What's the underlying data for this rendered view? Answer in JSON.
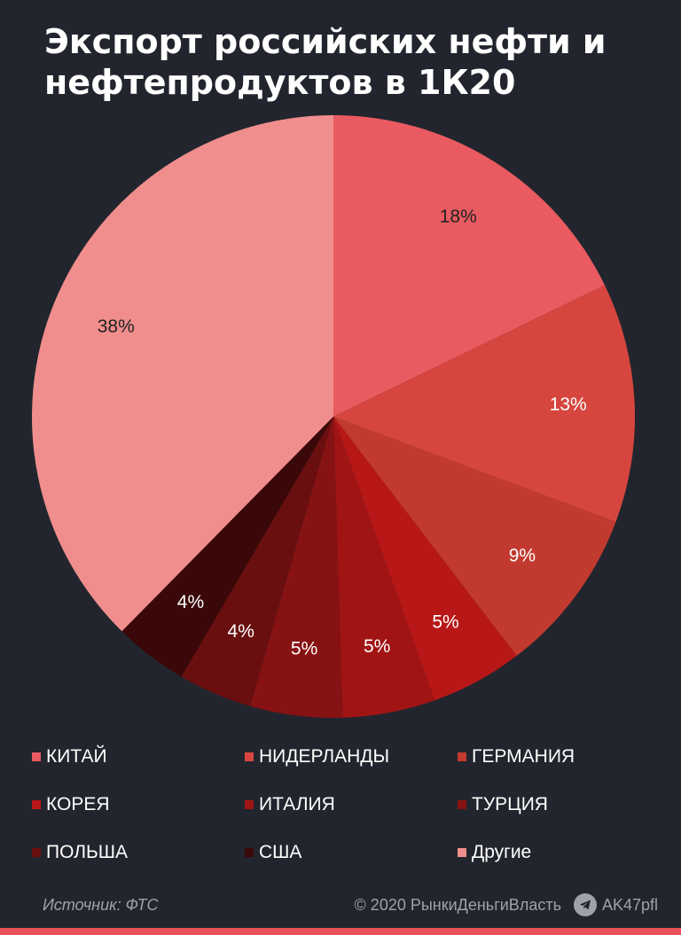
{
  "title": "Экспорт российских нефти и нефтепродуктов в 1К20",
  "chart_data": {
    "type": "pie",
    "title": "Экспорт российских нефти и нефтепродуктов в 1К20",
    "categories": [
      "КИТАЙ",
      "НИДЕРЛАНДЫ",
      "ГЕРМАНИЯ",
      "КОРЕЯ",
      "ИТАЛИЯ",
      "ТУРЦИЯ",
      "ПОЛЬША",
      "США",
      "Другие"
    ],
    "values": [
      18,
      13,
      9,
      5,
      5,
      5,
      4,
      4,
      38
    ],
    "labels": [
      "18%",
      "13%",
      "9%",
      "5%",
      "5%",
      "5%",
      "4%",
      "4%",
      "38%"
    ],
    "colors": [
      "#e95b61",
      "#d6463f",
      "#c23a2f",
      "#b81717",
      "#a11414",
      "#871214",
      "#6a0f0f",
      "#3a0808",
      "#f08e8d"
    ],
    "label_colors": [
      "#222222",
      "#ffffff",
      "#ffffff",
      "#ffffff",
      "#ffffff",
      "#ffffff",
      "#ffffff",
      "#ffffff",
      "#222222"
    ],
    "legend_position": "bottom"
  },
  "footer": {
    "source": "Источник: ФТС",
    "copyright": "© 2020  РынкиДеньгиВласть",
    "channel": "AK47pfl"
  }
}
